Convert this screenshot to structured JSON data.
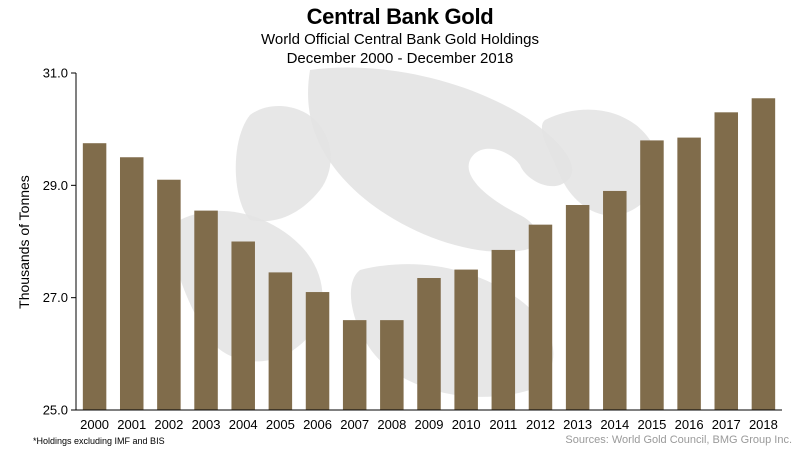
{
  "header": {
    "title": "Central Bank Gold",
    "subtitle1": "World Official Central Bank Gold Holdings",
    "subtitle2": "December 2000 - December 2018"
  },
  "footer": {
    "footnote": "*Holdings excluding IMF and BIS",
    "source": "Sources: World Gold Council, BMG Group Inc."
  },
  "watermark": {
    "icon": "griffin-logo-icon",
    "color": "#e3e3e3"
  },
  "chart_data": {
    "type": "bar",
    "title": "Central Bank Gold",
    "subtitle": "World Official Central Bank Gold Holdings December 2000 - December 2018",
    "xlabel": "",
    "ylabel": "Thousands of Tonnes",
    "categories": [
      "2000",
      "2001",
      "2002",
      "2003",
      "2004",
      "2005",
      "2006",
      "2007",
      "2008",
      "2009",
      "2010",
      "2011",
      "2012",
      "2013",
      "2014",
      "2015",
      "2016",
      "2017",
      "2018"
    ],
    "values": [
      29.75,
      29.5,
      29.1,
      28.55,
      28.0,
      27.45,
      27.1,
      26.6,
      26.6,
      27.35,
      27.5,
      27.85,
      28.3,
      28.65,
      28.9,
      29.8,
      29.85,
      30.3,
      30.55
    ],
    "ylim": [
      25.0,
      31.0
    ],
    "yticks": [
      "25.0",
      "27.0",
      "29.0",
      "31.0"
    ],
    "grid": false,
    "bar_color": "#806c4b",
    "axis_color": "#000000"
  }
}
